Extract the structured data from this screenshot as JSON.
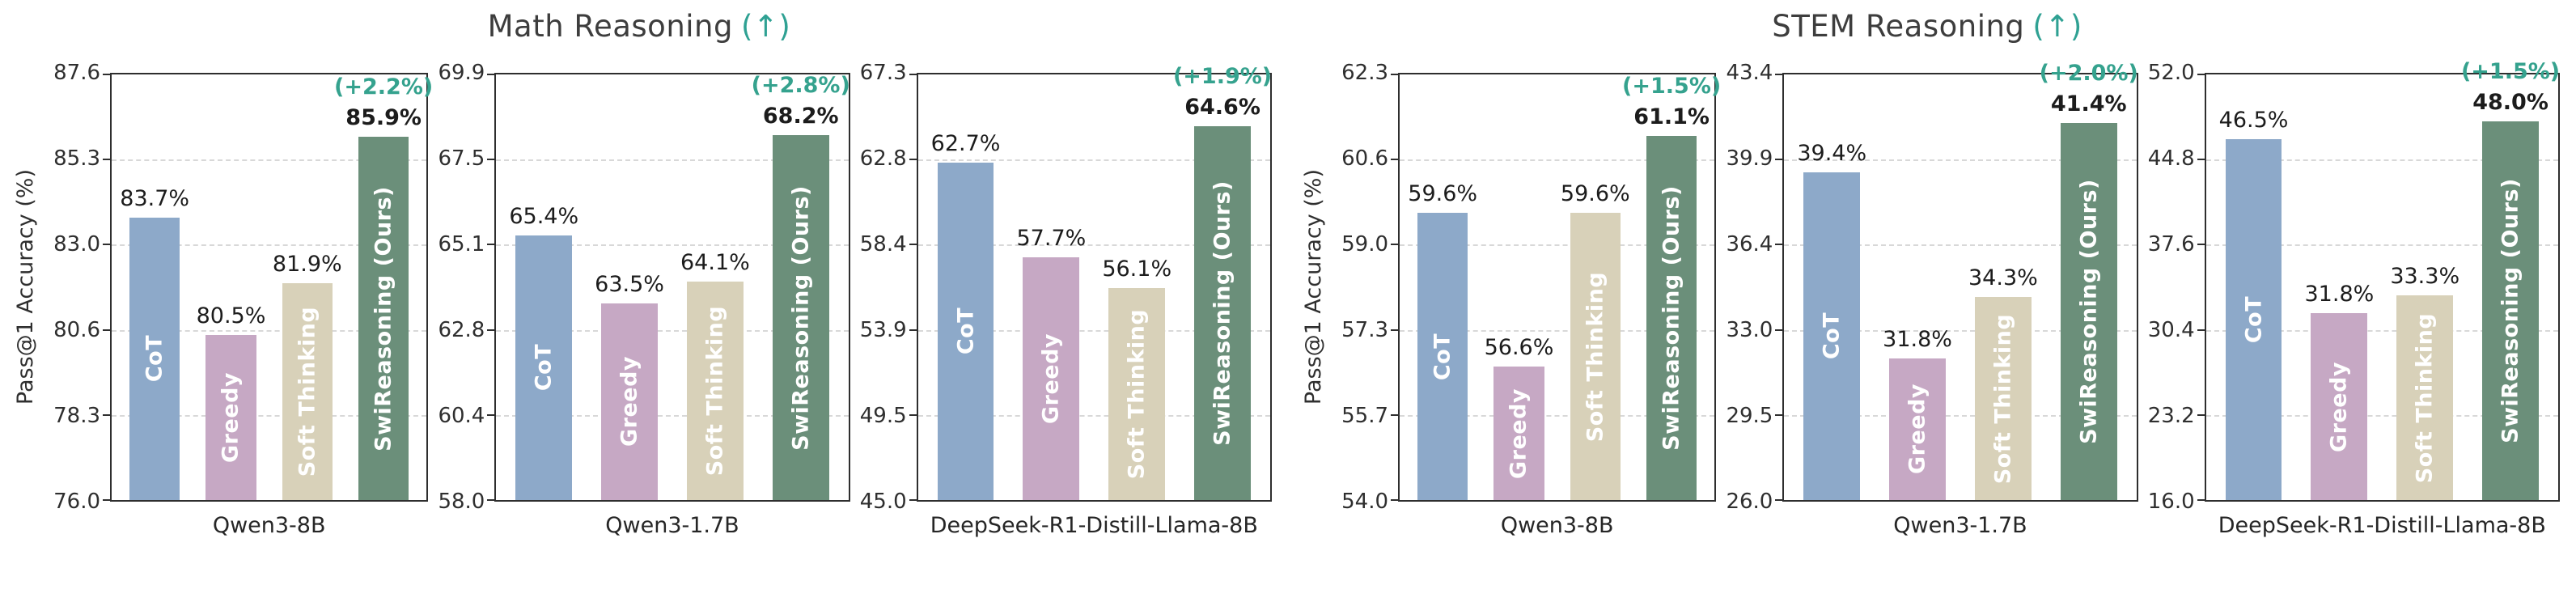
{
  "chart_data": {
    "type": "bar",
    "grid": "dashed-horizontal",
    "legend": "none",
    "methods": [
      "CoT",
      "Greedy",
      "Soft Thinking",
      "SwiReasoning (Ours)"
    ],
    "bar_colors": [
      "#8da9c9",
      "#c6a8c4",
      "#d8d1b9",
      "#6b8f7a"
    ],
    "gain_color": "#35a28e",
    "arrow_color": "#2fa193",
    "panels": [
      {
        "title": "Math Reasoning",
        "arrow": "(↑)",
        "ylabel": "Pass@1 Accuracy (%)",
        "subplots": [
          {
            "xlabel": "Qwen3-8B",
            "ylim": [
              76.0,
              87.6
            ],
            "yticks": [
              "87.6",
              "85.3",
              "83.0",
              "80.6",
              "78.3",
              "76.0"
            ],
            "values": [
              83.7,
              80.5,
              81.9,
              85.9
            ],
            "value_labels": [
              "83.7%",
              "80.5%",
              "81.9%",
              "85.9%"
            ],
            "gain": "(+2.2%)"
          },
          {
            "xlabel": "Qwen3-1.7B",
            "ylim": [
              58.0,
              69.9
            ],
            "yticks": [
              "69.9",
              "67.5",
              "65.1",
              "62.8",
              "60.4",
              "58.0"
            ],
            "values": [
              65.4,
              63.5,
              64.1,
              68.2
            ],
            "value_labels": [
              "65.4%",
              "63.5%",
              "64.1%",
              "68.2%"
            ],
            "gain": "(+2.8%)"
          },
          {
            "xlabel": "DeepSeek-R1-Distill-Llama-8B",
            "ylim": [
              45.0,
              67.3
            ],
            "yticks": [
              "67.3",
              "62.8",
              "58.4",
              "53.9",
              "49.5",
              "45.0"
            ],
            "values": [
              62.7,
              57.7,
              56.1,
              64.6
            ],
            "value_labels": [
              "62.7%",
              "57.7%",
              "56.1%",
              "64.6%"
            ],
            "gain": "(+1.9%)"
          }
        ]
      },
      {
        "title": "STEM Reasoning",
        "arrow": "(↑)",
        "ylabel": "Pass@1 Accuracy (%)",
        "subplots": [
          {
            "xlabel": "Qwen3-8B",
            "ylim": [
              54.0,
              62.3
            ],
            "yticks": [
              "62.3",
              "60.6",
              "59.0",
              "57.3",
              "55.7",
              "54.0"
            ],
            "values": [
              59.6,
              56.6,
              59.6,
              61.1
            ],
            "value_labels": [
              "59.6%",
              "56.6%",
              "59.6%",
              "61.1%"
            ],
            "gain": "(+1.5%)"
          },
          {
            "xlabel": "Qwen3-1.7B",
            "ylim": [
              26.0,
              43.4
            ],
            "yticks": [
              "43.4",
              "39.9",
              "36.4",
              "33.0",
              "29.5",
              "26.0"
            ],
            "values": [
              39.4,
              31.8,
              34.3,
              41.4
            ],
            "value_labels": [
              "39.4%",
              "31.8%",
              "34.3%",
              "41.4%"
            ],
            "gain": "(+2.0%)"
          },
          {
            "xlabel": "DeepSeek-R1-Distill-Llama-8B",
            "ylim": [
              16.0,
              52.0
            ],
            "yticks": [
              "52.0",
              "44.8",
              "37.6",
              "30.4",
              "23.2",
              "16.0"
            ],
            "values": [
              46.5,
              31.8,
              33.3,
              48.0
            ],
            "value_labels": [
              "46.5%",
              "31.8%",
              "33.3%",
              "48.0%"
            ],
            "gain": "(+1.5%)"
          }
        ]
      }
    ]
  }
}
